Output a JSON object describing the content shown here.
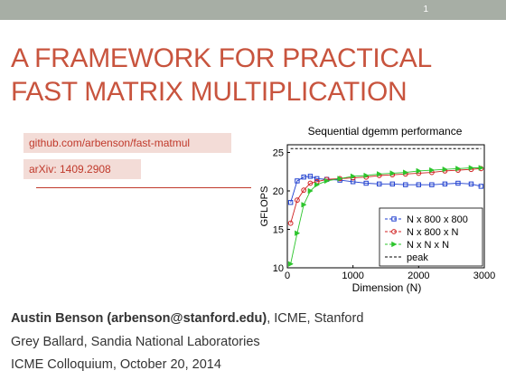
{
  "slide": {
    "number": "1",
    "title_line1": "A FRAMEWORK FOR PRACTICAL",
    "title_line2": "FAST MATRIX MULTIPLICATION",
    "links": {
      "github": "github.com/arbenson/fast-matmul",
      "arxiv": "arXiv: 1409.2908"
    },
    "footer": {
      "author_name": "Austin Benson (arbenson@stanford.edu)",
      "author_affil": ", ICME, Stanford",
      "coauthor": "Grey Ballard, Sandia National Laboratories",
      "event": "ICME Colloquium, October 20, 2014"
    },
    "colors": {
      "topbar": "#a7aea5",
      "title": "#c8543e",
      "link_bg": "#f3dcd7",
      "link_text": "#c0392b"
    }
  },
  "chart_data": {
    "type": "line",
    "title": "Sequential dgemm performance",
    "xlabel": "Dimension (N)",
    "ylabel": "GFLOPS",
    "xlim": [
      0,
      3000
    ],
    "ylim": [
      10,
      26
    ],
    "xticks": [
      0,
      1000,
      2000,
      3000
    ],
    "yticks": [
      10,
      15,
      20,
      25
    ],
    "legend_position": "bottom-right",
    "x": [
      50,
      150,
      250,
      350,
      450,
      600,
      800,
      1000,
      1200,
      1400,
      1600,
      1800,
      2000,
      2200,
      2400,
      2600,
      2800,
      2950
    ],
    "series": [
      {
        "name": "N x 800 x 800",
        "color": "#1f3fcf",
        "marker": "square",
        "values": [
          18.5,
          21.3,
          21.8,
          21.9,
          21.6,
          21.5,
          21.4,
          21.2,
          21.0,
          20.9,
          20.9,
          20.8,
          20.8,
          20.8,
          20.9,
          21.0,
          20.9,
          20.6
        ]
      },
      {
        "name": "N x 800 x N",
        "color": "#d02020",
        "marker": "circle",
        "values": [
          15.8,
          18.8,
          20.1,
          21.0,
          21.2,
          21.5,
          21.6,
          21.7,
          21.8,
          22.0,
          22.1,
          22.2,
          22.3,
          22.4,
          22.6,
          22.7,
          22.8,
          22.9
        ]
      },
      {
        "name": "N x N x N",
        "color": "#2cc52c",
        "marker": "triangle",
        "values": [
          10.5,
          14.5,
          18.2,
          20.0,
          20.8,
          21.3,
          21.6,
          21.9,
          22.0,
          22.2,
          22.3,
          22.4,
          22.6,
          22.7,
          22.8,
          22.9,
          23.0,
          23.0
        ]
      },
      {
        "name": "peak",
        "color": "#000000",
        "style": "dashed",
        "values": [
          25.5,
          25.5,
          25.5,
          25.5,
          25.5,
          25.5,
          25.5,
          25.5,
          25.5,
          25.5,
          25.5,
          25.5,
          25.5,
          25.5,
          25.5,
          25.5,
          25.5,
          25.5
        ]
      }
    ]
  }
}
